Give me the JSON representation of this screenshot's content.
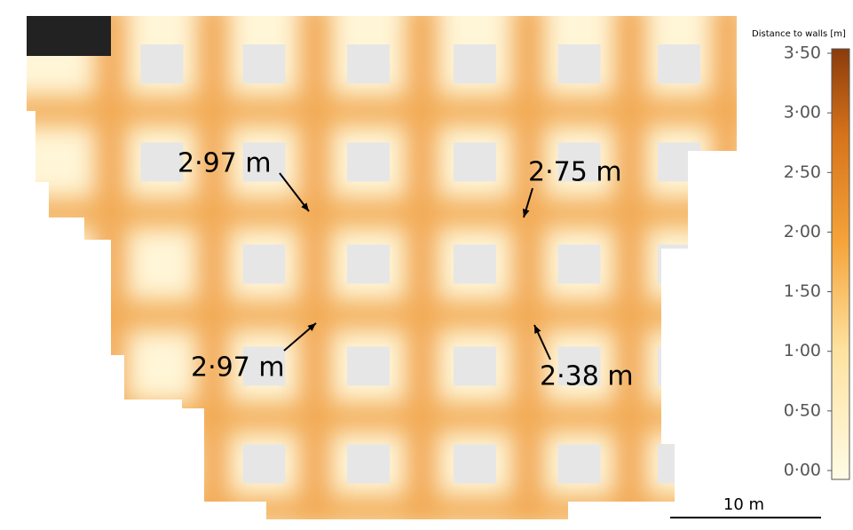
{
  "colorbar": {
    "title": "Distance to walls [m]",
    "range": [
      0,
      3.5
    ],
    "ticks": [
      {
        "value": 3.5,
        "label": "3·50"
      },
      {
        "value": 3,
        "label": "3·00"
      },
      {
        "value": 2.5,
        "label": "2·50"
      },
      {
        "value": 2,
        "label": "2·00"
      },
      {
        "value": 1.5,
        "label": "1·50"
      },
      {
        "value": 1,
        "label": "1·00"
      },
      {
        "value": 0.5,
        "label": "0·50"
      },
      {
        "value": 0,
        "label": "0·00"
      }
    ]
  },
  "annotations": [
    "2·97 m",
    "2·75 m",
    "2·97 m",
    "2·38 m"
  ],
  "scale_bar": "10 m"
}
